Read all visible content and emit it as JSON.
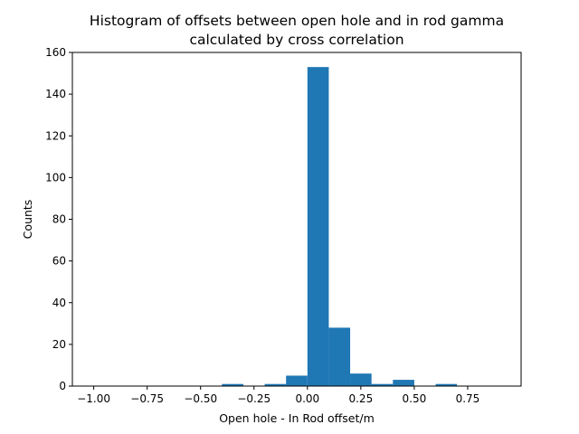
{
  "chart_data": {
    "type": "bar",
    "title_lines": [
      "Histogram of offsets between open hole and in rod gamma",
      "calculated by cross correlation"
    ],
    "xlabel": "Open hole - In Rod offset/m",
    "ylabel": "Counts",
    "xlim": [
      -1.1,
      1.0
    ],
    "ylim": [
      0,
      160
    ],
    "xticks": [
      -1.0,
      -0.75,
      -0.5,
      -0.25,
      0.0,
      0.25,
      0.5,
      0.75
    ],
    "xtick_labels": [
      "−1.00",
      "−0.75",
      "−0.50",
      "−0.25",
      "0.00",
      "0.25",
      "0.50",
      "0.75"
    ],
    "yticks": [
      0,
      20,
      40,
      60,
      80,
      100,
      120,
      140,
      160
    ],
    "ytick_labels": [
      "0",
      "20",
      "40",
      "60",
      "80",
      "100",
      "120",
      "140",
      "160"
    ],
    "bin_width": 0.1,
    "bins": [
      {
        "left": -1.0,
        "count": 0
      },
      {
        "left": -0.9,
        "count": 0
      },
      {
        "left": -0.8,
        "count": 0
      },
      {
        "left": -0.7,
        "count": 0
      },
      {
        "left": -0.6,
        "count": 0
      },
      {
        "left": -0.5,
        "count": 0
      },
      {
        "left": -0.4,
        "count": 1
      },
      {
        "left": -0.3,
        "count": 0
      },
      {
        "left": -0.2,
        "count": 1
      },
      {
        "left": -0.1,
        "count": 5
      },
      {
        "left": 0.0,
        "count": 153
      },
      {
        "left": 0.1,
        "count": 28
      },
      {
        "left": 0.2,
        "count": 6
      },
      {
        "left": 0.3,
        "count": 1
      },
      {
        "left": 0.4,
        "count": 3
      },
      {
        "left": 0.5,
        "count": 0
      },
      {
        "left": 0.6,
        "count": 1
      },
      {
        "left": 0.7,
        "count": 0
      },
      {
        "left": 0.8,
        "count": 0
      }
    ],
    "bar_color": "#1f77b4",
    "grid": false,
    "legend": false
  }
}
